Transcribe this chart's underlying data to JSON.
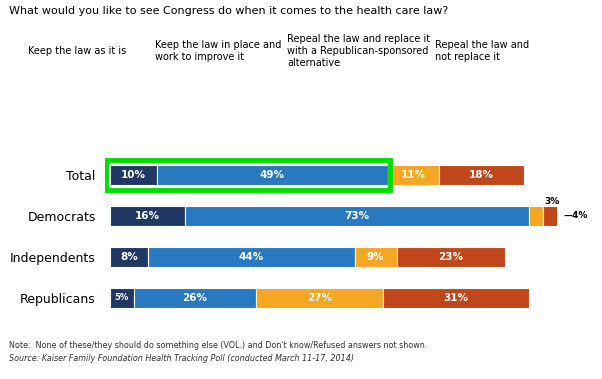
{
  "title": "What would you like to see Congress do when it comes to the health care law?",
  "groups": [
    "Total",
    "Democrats",
    "Independents",
    "Republicans"
  ],
  "series": [
    {
      "name": "Keep the law as it is",
      "color": "#1F3864",
      "values": [
        10,
        16,
        8,
        5
      ]
    },
    {
      "name": "Keep the law in place and\nwork to improve it",
      "color": "#2979C0",
      "values": [
        49,
        73,
        44,
        26
      ]
    },
    {
      "name": "Repeal the law and replace it\nwith a Republican-sponsored\nalternative",
      "color": "#F5A623",
      "values": [
        11,
        3,
        9,
        27
      ]
    },
    {
      "name": "Repeal the law and\nnot replace it",
      "color": "#C0471B",
      "values": [
        18,
        4,
        23,
        31
      ]
    }
  ],
  "labels": [
    [
      "10%",
      "49%",
      "11%",
      "18%"
    ],
    [
      "16%",
      "73%",
      "3%",
      "4%"
    ],
    [
      "8%",
      "44%",
      "9%",
      "23%"
    ],
    [
      "5%",
      "26%",
      "27%",
      "31%"
    ]
  ],
  "note": "Note:  None of these/they should do something else (VOL.) and Don't know/Refused answers not shown.",
  "source": "Source: Kaiser Family Foundation Health Tracking Poll (conducted March 11-17, 2014)",
  "highlight_box_color": "#00DD00",
  "bar_height": 0.5,
  "background_color": "#FFFFFF",
  "legend_labels": [
    "Keep the law as it is",
    "Keep the law in place and\nwork to improve it",
    "Repeal the law and replace it\nwith a Republican-sponsored\nalternative",
    "Repeal the law and\nnot replace it"
  ]
}
